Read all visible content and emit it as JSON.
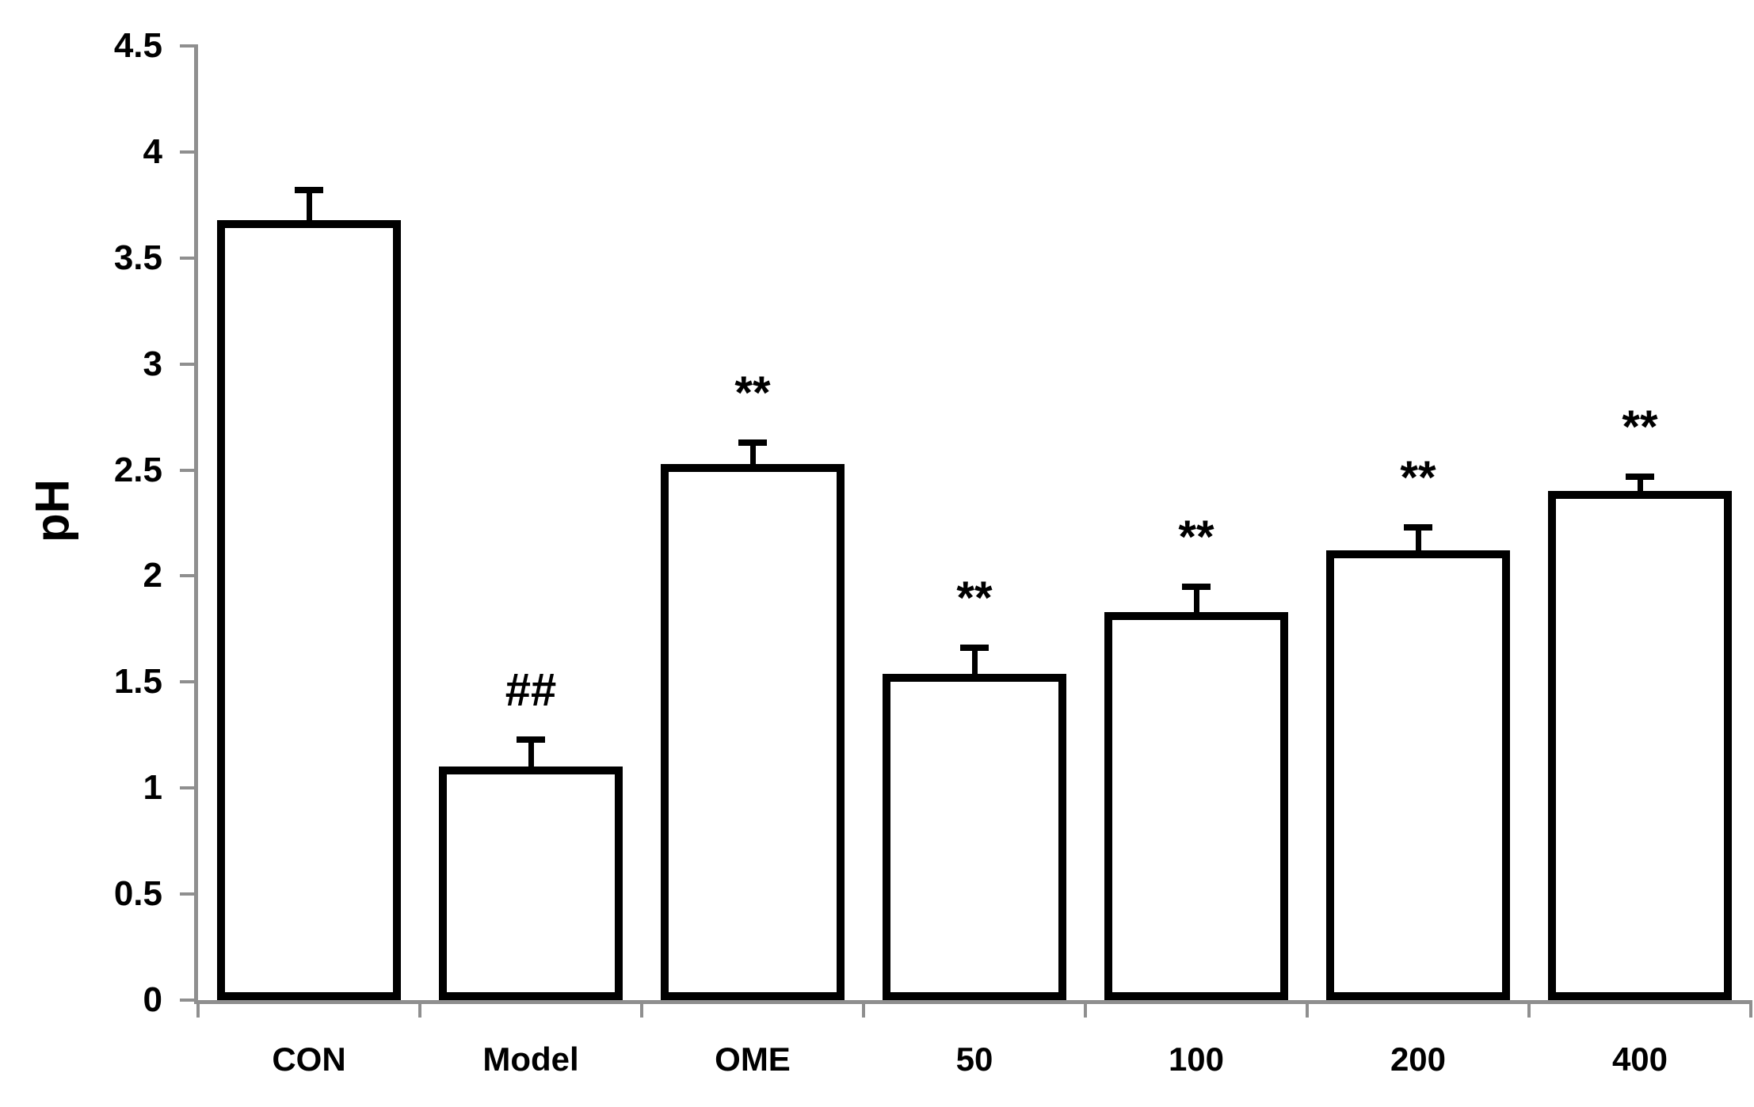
{
  "chart_data": {
    "type": "bar",
    "title": "",
    "ylabel": "pH",
    "xlabel": "",
    "ylim": [
      0,
      4.5
    ],
    "ytick_step": 0.5,
    "yticks": [
      "0",
      "0.5",
      "1",
      "1.5",
      "2",
      "2.5",
      "3",
      "3.5",
      "4",
      "4.5"
    ],
    "categories": [
      "CON",
      "Model",
      "OME",
      "50",
      "100",
      "200",
      "400"
    ],
    "values": [
      3.68,
      1.1,
      2.53,
      1.54,
      1.83,
      2.12,
      2.4
    ],
    "upper_errors": [
      0.14,
      0.13,
      0.1,
      0.12,
      0.12,
      0.11,
      0.07
    ],
    "annotations": [
      "",
      "##",
      "**",
      "**",
      "**",
      "**",
      "**"
    ],
    "grid": false,
    "legend": null,
    "style": {
      "bar_fill": "#ffffff",
      "bar_border_color": "#000000",
      "error_bar_color": "#000000",
      "axis_color": "#8f8f8f",
      "text_color": "#000000",
      "background": "#ffffff"
    }
  }
}
